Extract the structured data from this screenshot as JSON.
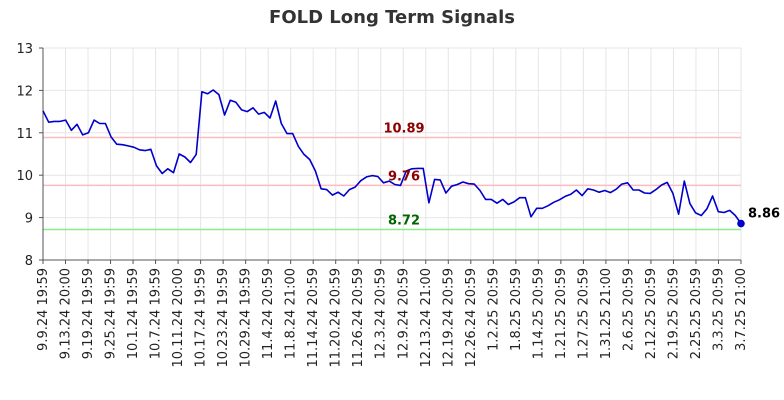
{
  "chart_data": {
    "type": "line",
    "title": "FOLD Long Term Signals",
    "xlabel": "",
    "ylabel": "",
    "ylim": [
      8,
      13
    ],
    "yticks": [
      8,
      9,
      10,
      11,
      12,
      13
    ],
    "grid": true,
    "x_tick_labels": [
      "9.9.24 19:59",
      "9.13.24 20:00",
      "9.19.24 19:59",
      "9.25.24 19:59",
      "10.1.24 19:59",
      "10.7.24 19:59",
      "10.11.24 20:00",
      "10.17.24 19:59",
      "10.23.24 19:59",
      "10.29.24 19:59",
      "11.4.24 20:59",
      "11.8.24 21:00",
      "11.14.24 20:59",
      "11.20.24 20:59",
      "11.26.24 20:59",
      "12.3.24 20:59",
      "12.9.24 20:59",
      "12.13.24 21:00",
      "12.19.24 20:59",
      "12.26.24 20:59",
      "1.2.25 20:59",
      "1.8.25 20:59",
      "1.14.25 20:59",
      "1.21.25 20:59",
      "1.27.25 20:59",
      "1.31.25 21:00",
      "2.6.25 20:59",
      "2.12.25 20:59",
      "2.19.25 20:59",
      "2.25.25 20:59",
      "3.3.25 20:59",
      "3.7.25 21:00"
    ],
    "series": [
      {
        "color": "#0000cc",
        "values": [
          11.52,
          11.25,
          11.27,
          11.27,
          11.3,
          11.06,
          11.2,
          10.95,
          11.0,
          11.3,
          11.22,
          11.22,
          10.9,
          10.73,
          10.72,
          10.69,
          10.66,
          10.6,
          10.58,
          10.61,
          10.22,
          10.04,
          10.15,
          10.06,
          10.5,
          10.43,
          10.3,
          10.49,
          11.97,
          11.92,
          12.01,
          11.9,
          11.42,
          11.77,
          11.72,
          11.54,
          11.5,
          11.59,
          11.44,
          11.48,
          11.35,
          11.75,
          11.22,
          10.98,
          10.98,
          10.68,
          10.49,
          10.37,
          10.1,
          9.68,
          9.66,
          9.53,
          9.6,
          9.51,
          9.66,
          9.72,
          9.87,
          9.96,
          9.99,
          9.97,
          9.82,
          9.86,
          9.78,
          9.76,
          10.1,
          10.15,
          10.16,
          10.16,
          9.35,
          9.9,
          9.89,
          9.58,
          9.74,
          9.78,
          9.84,
          9.8,
          9.79,
          9.64,
          9.43,
          9.43,
          9.34,
          9.43,
          9.31,
          9.37,
          9.47,
          9.47,
          9.02,
          9.22,
          9.22,
          9.28,
          9.36,
          9.42,
          9.5,
          9.55,
          9.65,
          9.52,
          9.68,
          9.65,
          9.6,
          9.64,
          9.59,
          9.67,
          9.79,
          9.82,
          9.65,
          9.65,
          9.58,
          9.57,
          9.66,
          9.77,
          9.83,
          9.57,
          9.08,
          9.86,
          9.33,
          9.11,
          9.05,
          9.21,
          9.51,
          9.14,
          9.12,
          9.17,
          9.05,
          8.86
        ]
      }
    ],
    "reference_lines": [
      {
        "value": 10.89,
        "label": "10.89",
        "color": "#ffbbbb",
        "text_color": "#8b0000"
      },
      {
        "value": 9.76,
        "label": "9.76",
        "color": "#ffbbbb",
        "text_color": "#8b0000"
      },
      {
        "value": 8.72,
        "label": "8.72",
        "color": "#88ee88",
        "text_color": "#006400"
      }
    ],
    "last_value_label": "8.86",
    "colors": {
      "grid": "#e6e6e6",
      "axis": "#555555",
      "line": "#0000cc"
    }
  }
}
